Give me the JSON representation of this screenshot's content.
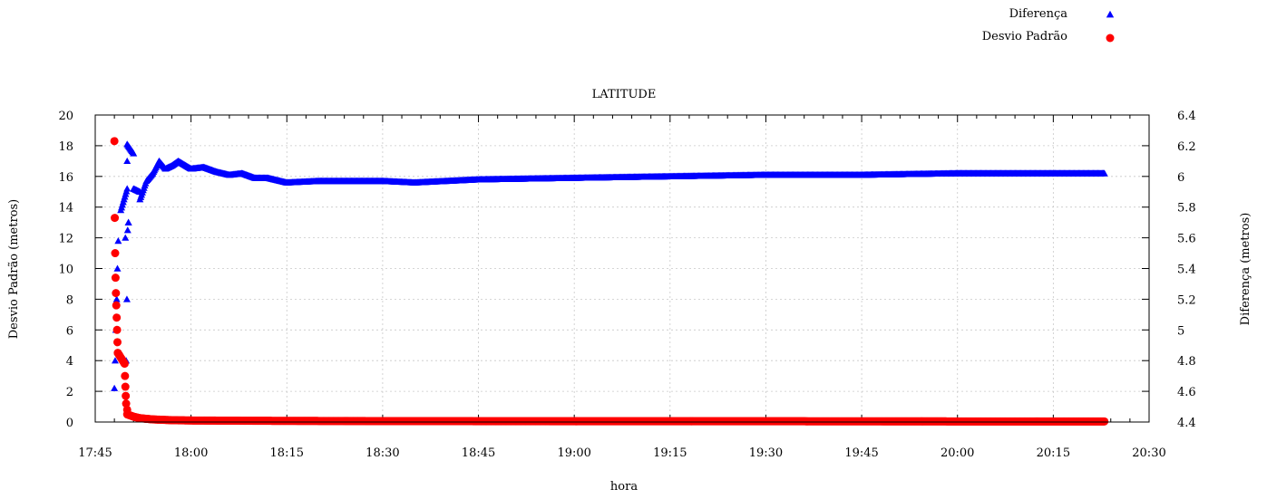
{
  "chart_data": {
    "type": "scatter",
    "title": "LATITUDE",
    "xlabel": "hora",
    "ylabel_left": "Desvio Padrão (metros)",
    "ylabel_right": "Diferença (metros)",
    "x_ticks": [
      "17:45",
      "18:00",
      "18:15",
      "18:30",
      "18:45",
      "19:00",
      "19:15",
      "19:30",
      "19:45",
      "20:00",
      "20:15",
      "20:30"
    ],
    "x_range_minutes": [
      0,
      165
    ],
    "ylim_left": [
      0,
      20
    ],
    "ylim_right": [
      4.4,
      6.4
    ],
    "y_ticks_left": [
      0,
      2,
      4,
      6,
      8,
      10,
      12,
      14,
      16,
      18,
      20
    ],
    "y_ticks_right": [
      "4.4",
      "4.6",
      "4.8",
      "5",
      "5.2",
      "5.4",
      "5.6",
      "5.8",
      "6",
      "6.2",
      "6.4"
    ],
    "grid": true,
    "legend_position": "top-right",
    "colors": {
      "diferenca": "#0000ff",
      "desvio": "#ff0000"
    },
    "series": [
      {
        "name": "Diferença",
        "axis": "right",
        "marker": "triangle",
        "points": [
          [
            "17:48",
            4.62
          ],
          [
            "17:48",
            4.8
          ],
          [
            "17:48",
            5.0
          ],
          [
            "17:48",
            5.2
          ],
          [
            "17:48",
            5.4
          ],
          [
            "17:48",
            5.58
          ],
          [
            "17:49",
            5.6
          ],
          [
            "17:49",
            4.8
          ],
          [
            "17:49",
            5.2
          ],
          [
            "17:49",
            5.65
          ],
          [
            "17:49",
            5.7
          ],
          [
            "17:49",
            5.78
          ],
          [
            "17:50",
            5.92
          ],
          [
            "17:50",
            6.1
          ],
          [
            "17:50",
            6.21
          ],
          [
            "17:51",
            6.15
          ],
          [
            "17:51",
            5.92
          ],
          [
            "17:52",
            5.9
          ],
          [
            "17:52",
            5.85
          ],
          [
            "17:53",
            5.97
          ],
          [
            "17:54",
            6.02
          ],
          [
            "17:55",
            6.1
          ],
          [
            "17:56",
            6.05
          ],
          [
            "17:57",
            6.07
          ],
          [
            "17:58",
            6.1
          ],
          [
            "18:00",
            6.05
          ],
          [
            "18:02",
            6.06
          ],
          [
            "18:04",
            6.03
          ],
          [
            "18:06",
            6.01
          ],
          [
            "18:08",
            6.02
          ],
          [
            "18:10",
            5.99
          ],
          [
            "18:12",
            5.99
          ],
          [
            "18:15",
            5.96
          ],
          [
            "18:20",
            5.97
          ],
          [
            "18:30",
            5.97
          ],
          [
            "18:35",
            5.96
          ],
          [
            "18:45",
            5.98
          ],
          [
            "19:00",
            5.99
          ],
          [
            "19:15",
            6.0
          ],
          [
            "19:30",
            6.01
          ],
          [
            "19:45",
            6.01
          ],
          [
            "20:00",
            6.02
          ],
          [
            "20:15",
            6.02
          ],
          [
            "20:23",
            6.02
          ]
        ]
      },
      {
        "name": "Desvio Padrão",
        "axis": "left",
        "marker": "circle",
        "points": [
          [
            "17:48",
            18.3
          ],
          [
            "17:48",
            13.3
          ],
          [
            "17:48",
            11.0
          ],
          [
            "17:48",
            9.4
          ],
          [
            "17:48",
            8.4
          ],
          [
            "17:48",
            7.6
          ],
          [
            "17:48",
            6.8
          ],
          [
            "17:48",
            6.0
          ],
          [
            "17:48",
            5.2
          ],
          [
            "17:48",
            4.5
          ],
          [
            "17:49",
            3.8
          ],
          [
            "17:49",
            3.0
          ],
          [
            "17:49",
            2.3
          ],
          [
            "17:49",
            1.7
          ],
          [
            "17:49",
            1.2
          ],
          [
            "17:50",
            0.8
          ],
          [
            "17:50",
            0.5
          ],
          [
            "17:51",
            0.35
          ],
          [
            "17:52",
            0.25
          ],
          [
            "17:54",
            0.17
          ],
          [
            "17:57",
            0.12
          ],
          [
            "18:00",
            0.1
          ],
          [
            "18:10",
            0.08
          ],
          [
            "18:30",
            0.06
          ],
          [
            "19:00",
            0.05
          ],
          [
            "19:30",
            0.05
          ],
          [
            "20:00",
            0.04
          ],
          [
            "20:23",
            0.04
          ]
        ]
      }
    ]
  }
}
